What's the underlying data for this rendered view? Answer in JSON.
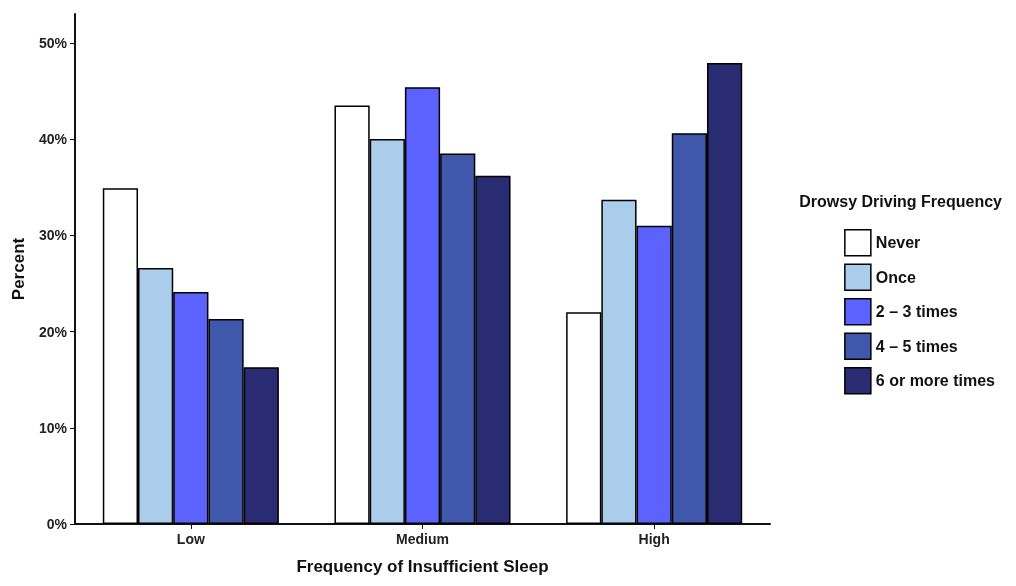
{
  "chart_data": {
    "type": "bar",
    "xlabel": "Frequency of Insufficient Sleep",
    "ylabel": "Percent",
    "legend_title": "Drowsy Driving Frequency",
    "legend": "right",
    "categories": [
      "Low",
      "Medium",
      "High"
    ],
    "series": [
      {
        "name": "Never",
        "color": "#ffffff",
        "values": [
          34.9,
          43.5,
          22.0
        ]
      },
      {
        "name": "Once",
        "color": "#abcdec",
        "values": [
          26.6,
          40.0,
          33.7
        ]
      },
      {
        "name": "2 – 3 times",
        "color": "#5b62fd",
        "values": [
          24.1,
          45.4,
          31.0
        ]
      },
      {
        "name": "4 – 5 times",
        "color": "#3f58ac",
        "values": [
          21.3,
          38.5,
          40.6
        ]
      },
      {
        "name": "6 or more times",
        "color": "#292b73",
        "values": [
          16.3,
          36.2,
          47.9
        ]
      }
    ],
    "ylim": [
      0,
      53
    ],
    "yticks": [
      {
        "value": 0,
        "label": "0%"
      },
      {
        "value": 10,
        "label": "10%"
      },
      {
        "value": 20,
        "label": "20%"
      },
      {
        "value": 30,
        "label": "30%"
      },
      {
        "value": 40,
        "label": "40%"
      },
      {
        "value": 50,
        "label": "50%"
      }
    ],
    "grid": false
  }
}
